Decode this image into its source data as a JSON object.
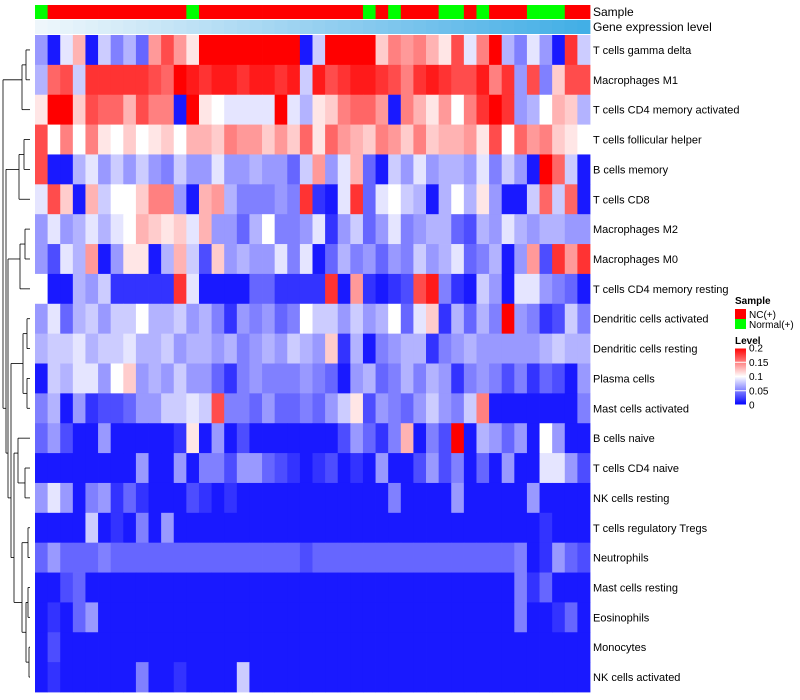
{
  "chart_data": {
    "type": "heatmap",
    "title": "",
    "annotation_tracks": [
      {
        "name": "Sample",
        "colors": [
          "#00ff00",
          "#ff0000",
          "#ff0000",
          "#ff0000",
          "#ff0000",
          "#ff0000",
          "#ff0000",
          "#ff0000",
          "#ff0000",
          "#ff0000",
          "#ff0000",
          "#ff0000",
          "#00ff00",
          "#ff0000",
          "#ff0000",
          "#ff0000",
          "#ff0000",
          "#ff0000",
          "#ff0000",
          "#ff0000",
          "#ff0000",
          "#ff0000",
          "#ff0000",
          "#ff0000",
          "#ff0000",
          "#ff0000",
          "#00ff00",
          "#ff0000",
          "#00ff00",
          "#ff0000",
          "#ff0000",
          "#ff0000",
          "#00ff00",
          "#00ff00",
          "#ff0000",
          "#00ff00",
          "#ff0000",
          "#ff0000",
          "#ff0000",
          "#00ff00",
          "#00ff00",
          "#00ff00",
          "#ff0000",
          "#ff0000"
        ]
      },
      {
        "name": "Gene expression level",
        "colors": [
          "#eef6fb",
          "#eaf5fb",
          "#e6f3fa",
          "#e2f1fa",
          "#def0f9",
          "#daeef9",
          "#d6ecf8",
          "#d2eaf8",
          "#ceE8f7",
          "#cae7f7",
          "#c6e5f6",
          "#c2e3f6",
          "#bee1f5",
          "#bae0f5",
          "#b6def4",
          "#b2dcf4",
          "#aedaf3",
          "#aad9f3",
          "#a6d7f2",
          "#a2d5f2",
          "#9ed3f1",
          "#9ad2f1",
          "#96d0f0",
          "#92cef0",
          "#8ecdef",
          "#8acbef",
          "#86c9ee",
          "#82c8ee",
          "#7ec6ed",
          "#7ac4ed",
          "#76c3ec",
          "#72c1ec",
          "#6ebfeb",
          "#6abeeb",
          "#66bcea",
          "#62bbea",
          "#5eb9e9",
          "#5ab8e9",
          "#56b6e8",
          "#52b5e8",
          "#4eb3e7",
          "#4ab2e7",
          "#46b0e6",
          "#42afe6"
        ]
      }
    ],
    "rows": [
      "T cells gamma delta",
      "Macrophages M1",
      "T cells CD4 memory activated",
      "T cells follicular helper",
      "B cells memory",
      "T cells CD8",
      "Macrophages M2",
      "Macrophages M0",
      "T cells CD4 memory resting",
      "Dendritic cells activated",
      "Dendritic cells resting",
      "Plasma cells",
      "Mast cells activated",
      "B cells naive",
      "T cells CD4 naive",
      "NK cells resting",
      "T cells regulatory  Tregs",
      "Neutrophils",
      "Mast cells resting",
      "Eosinophils",
      "Monocytes",
      "NK cells activated"
    ],
    "values": [
      [
        0.06,
        0.01,
        0.09,
        0.13,
        0.01,
        0.08,
        0.05,
        0.07,
        0.04,
        0.14,
        0.17,
        0.14,
        0.11,
        0.2,
        0.2,
        0.2,
        0.2,
        0.2,
        0.2,
        0.2,
        0.2,
        0.01,
        0.08,
        0.2,
        0.2,
        0.2,
        0.2,
        0.12,
        0.15,
        0.14,
        0.15,
        0.13,
        0.11,
        0.17,
        0.09,
        0.15,
        0.2,
        0.07,
        0.05,
        0.09,
        0.06,
        0.01,
        0.18,
        0.08
      ],
      [
        0.07,
        0.16,
        0.17,
        0.08,
        0.18,
        0.18,
        0.18,
        0.18,
        0.18,
        0.17,
        0.16,
        0.2,
        0.19,
        0.18,
        0.19,
        0.19,
        0.18,
        0.19,
        0.19,
        0.18,
        0.19,
        0.08,
        0.19,
        0.17,
        0.18,
        0.19,
        0.19,
        0.18,
        0.17,
        0.15,
        0.18,
        0.19,
        0.18,
        0.17,
        0.17,
        0.19,
        0.15,
        0.18,
        0.06,
        0.17,
        0.05,
        0.12,
        0.17,
        0.17
      ],
      [
        0.11,
        0.2,
        0.2,
        0.12,
        0.17,
        0.16,
        0.16,
        0.13,
        0.17,
        0.15,
        0.15,
        0.01,
        0.2,
        0.11,
        0.1,
        0.09,
        0.09,
        0.09,
        0.09,
        0.2,
        0.09,
        0.07,
        0.11,
        0.12,
        0.15,
        0.16,
        0.16,
        0.14,
        0.01,
        0.15,
        0.13,
        0.11,
        0.14,
        0.1,
        0.15,
        0.18,
        0.2,
        0.18,
        0.06,
        0.07,
        0.1,
        0.13,
        0.12,
        0.07
      ],
      [
        0.17,
        0.1,
        0.15,
        0.1,
        0.15,
        0.11,
        0.1,
        0.12,
        0.1,
        0.11,
        0.12,
        0.1,
        0.13,
        0.13,
        0.12,
        0.15,
        0.14,
        0.14,
        0.12,
        0.14,
        0.12,
        0.16,
        0.11,
        0.16,
        0.14,
        0.13,
        0.12,
        0.15,
        0.14,
        0.12,
        0.15,
        0.12,
        0.13,
        0.13,
        0.14,
        0.11,
        0.17,
        0.1,
        0.16,
        0.14,
        0.15,
        0.12,
        0.11,
        0.1
      ],
      [
        0.17,
        0.01,
        0.01,
        0.07,
        0.09,
        0.06,
        0.08,
        0.06,
        0.08,
        0.06,
        0.05,
        0.08,
        0.06,
        0.06,
        0.09,
        0.06,
        0.06,
        0.07,
        0.06,
        0.06,
        0.04,
        0.08,
        0.14,
        0.06,
        0.09,
        0.13,
        0.04,
        0.01,
        0.08,
        0.06,
        0.09,
        0.06,
        0.07,
        0.07,
        0.06,
        0.09,
        0.05,
        0.08,
        0.06,
        0.01,
        0.2,
        0.16,
        0.08,
        0.01
      ],
      [
        0.09,
        0.17,
        0.12,
        0.01,
        0.13,
        0.08,
        0.1,
        0.1,
        0.12,
        0.15,
        0.15,
        0.06,
        0.01,
        0.13,
        0.14,
        0.07,
        0.05,
        0.05,
        0.05,
        0.06,
        0.05,
        0.18,
        0.02,
        0.01,
        0.09,
        0.18,
        0.04,
        0.09,
        0.1,
        0.08,
        0.07,
        0.01,
        0.07,
        0.1,
        0.07,
        0.11,
        0.06,
        0.01,
        0.01,
        0.08,
        0.16,
        0.08,
        0.16,
        0.01
      ],
      [
        0.06,
        0.09,
        0.06,
        0.07,
        0.09,
        0.07,
        0.09,
        0.1,
        0.13,
        0.12,
        0.11,
        0.12,
        0.09,
        0.13,
        0.06,
        0.06,
        0.04,
        0.07,
        0.1,
        0.05,
        0.05,
        0.06,
        0.09,
        0.02,
        0.06,
        0.08,
        0.04,
        0.06,
        0.09,
        0.05,
        0.06,
        0.07,
        0.07,
        0.04,
        0.03,
        0.07,
        0.06,
        0.09,
        0.07,
        0.06,
        0.07,
        0.07,
        0.06,
        0.06
      ],
      [
        0.06,
        0.03,
        0.09,
        0.07,
        0.14,
        0.01,
        0.06,
        0.11,
        0.11,
        0.01,
        0.07,
        0.13,
        0.08,
        0.03,
        0.12,
        0.06,
        0.07,
        0.06,
        0.06,
        0.09,
        0.05,
        0.09,
        0.01,
        0.04,
        0.07,
        0.05,
        0.06,
        0.04,
        0.06,
        0.05,
        0.08,
        0.06,
        0.07,
        0.09,
        0.04,
        0.05,
        0.07,
        0.01,
        0.06,
        0.14,
        0.03,
        0.18,
        0.14,
        0.18
      ],
      [
        0.1,
        0.01,
        0.01,
        0.07,
        0.06,
        0.08,
        0.02,
        0.02,
        0.02,
        0.02,
        0.02,
        0.18,
        0.09,
        0.01,
        0.01,
        0.01,
        0.01,
        0.04,
        0.04,
        0.02,
        0.02,
        0.02,
        0.02,
        0.18,
        0.01,
        0.14,
        0.02,
        0.01,
        0.02,
        0.03,
        0.17,
        0.19,
        0.05,
        0.02,
        0.01,
        0.08,
        0.06,
        0.01,
        0.09,
        0.09,
        0.06,
        0.05,
        0.04,
        0.01
      ],
      [
        0.06,
        0.09,
        0.04,
        0.07,
        0.08,
        0.06,
        0.08,
        0.08,
        0.1,
        0.07,
        0.07,
        0.08,
        0.06,
        0.07,
        0.05,
        0.02,
        0.06,
        0.05,
        0.06,
        0.04,
        0.05,
        0.1,
        0.08,
        0.08,
        0.06,
        0.08,
        0.06,
        0.07,
        0.1,
        0.04,
        0.09,
        0.12,
        0.02,
        0.07,
        0.04,
        0.07,
        0.05,
        0.2,
        0.06,
        0.05,
        0.02,
        0.03,
        0.08,
        0.05
      ],
      [
        0.07,
        0.08,
        0.08,
        0.09,
        0.07,
        0.08,
        0.08,
        0.09,
        0.07,
        0.07,
        0.08,
        0.06,
        0.07,
        0.07,
        0.06,
        0.07,
        0.05,
        0.06,
        0.07,
        0.06,
        0.08,
        0.07,
        0.06,
        0.12,
        0.02,
        0.07,
        0.01,
        0.05,
        0.06,
        0.07,
        0.07,
        0.02,
        0.05,
        0.06,
        0.07,
        0.06,
        0.06,
        0.06,
        0.06,
        0.06,
        0.07,
        0.08,
        0.07,
        0.07
      ],
      [
        0.01,
        0.08,
        0.07,
        0.09,
        0.09,
        0.06,
        0.1,
        0.12,
        0.06,
        0.07,
        0.06,
        0.08,
        0.06,
        0.06,
        0.04,
        0.02,
        0.05,
        0.06,
        0.05,
        0.05,
        0.05,
        0.06,
        0.05,
        0.04,
        0.01,
        0.06,
        0.07,
        0.04,
        0.05,
        0.07,
        0.05,
        0.07,
        0.06,
        0.02,
        0.05,
        0.06,
        0.05,
        0.03,
        0.05,
        0.02,
        0.04,
        0.03,
        0.01,
        0.06
      ],
      [
        0.05,
        0.07,
        0.01,
        0.06,
        0.02,
        0.03,
        0.03,
        0.04,
        0.06,
        0.06,
        0.08,
        0.08,
        0.09,
        0.08,
        0.17,
        0.05,
        0.05,
        0.04,
        0.06,
        0.04,
        0.04,
        0.05,
        0.04,
        0.06,
        0.08,
        0.11,
        0.03,
        0.06,
        0.05,
        0.04,
        0.06,
        0.08,
        0.06,
        0.05,
        0.08,
        0.15,
        0.01,
        0.01,
        0.01,
        0.01,
        0.01,
        0.01,
        0.01,
        0.05
      ],
      [
        0.04,
        0.06,
        0.03,
        0.01,
        0.01,
        0.06,
        0.01,
        0.01,
        0.01,
        0.01,
        0.01,
        0.02,
        0.11,
        0.01,
        0.06,
        0.01,
        0.03,
        0.01,
        0.01,
        0.01,
        0.01,
        0.01,
        0.01,
        0.01,
        0.03,
        0.06,
        0.04,
        0.02,
        0.05,
        0.13,
        0.01,
        0.05,
        0.03,
        0.2,
        0.01,
        0.07,
        0.06,
        0.04,
        0.06,
        0.01,
        0.1,
        0.06,
        0.01,
        0.01
      ],
      [
        0.01,
        0.01,
        0.01,
        0.01,
        0.01,
        0.01,
        0.01,
        0.01,
        0.06,
        0.01,
        0.01,
        0.06,
        0.01,
        0.05,
        0.05,
        0.03,
        0.06,
        0.06,
        0.04,
        0.03,
        0.02,
        0.01,
        0.02,
        0.03,
        0.01,
        0.02,
        0.01,
        0.06,
        0.01,
        0.01,
        0.03,
        0.06,
        0.03,
        0.05,
        0.01,
        0.04,
        0.01,
        0.06,
        0.01,
        0.01,
        0.09,
        0.09,
        0.06,
        0.03
      ],
      [
        0.06,
        0.09,
        0.06,
        0.01,
        0.05,
        0.06,
        0.02,
        0.04,
        0.02,
        0.01,
        0.01,
        0.01,
        0.03,
        0.02,
        0.01,
        0.02,
        0.01,
        0.01,
        0.01,
        0.01,
        0.01,
        0.01,
        0.01,
        0.01,
        0.01,
        0.01,
        0.01,
        0.01,
        0.05,
        0.01,
        0.01,
        0.01,
        0.01,
        0.06,
        0.01,
        0.01,
        0.01,
        0.01,
        0.01,
        0.06,
        0.01,
        0.01,
        0.01,
        0.01
      ],
      [
        0.01,
        0.01,
        0.01,
        0.01,
        0.08,
        0.01,
        0.02,
        0.01,
        0.05,
        0.01,
        0.06,
        0.01,
        0.01,
        0.01,
        0.01,
        0.01,
        0.01,
        0.01,
        0.01,
        0.01,
        0.01,
        0.01,
        0.01,
        0.01,
        0.01,
        0.01,
        0.01,
        0.01,
        0.01,
        0.01,
        0.01,
        0.01,
        0.01,
        0.01,
        0.01,
        0.01,
        0.01,
        0.01,
        0.01,
        0.01,
        0.02,
        0.01,
        0.01,
        0.01
      ],
      [
        0.04,
        0.06,
        0.04,
        0.04,
        0.04,
        0.05,
        0.04,
        0.04,
        0.04,
        0.04,
        0.04,
        0.04,
        0.04,
        0.04,
        0.04,
        0.04,
        0.04,
        0.04,
        0.04,
        0.04,
        0.04,
        0.03,
        0.04,
        0.04,
        0.04,
        0.04,
        0.04,
        0.04,
        0.04,
        0.04,
        0.04,
        0.04,
        0.04,
        0.04,
        0.04,
        0.04,
        0.04,
        0.04,
        0.05,
        0.01,
        0.02,
        0.06,
        0.04,
        0.03
      ],
      [
        0.01,
        0.01,
        0.03,
        0.04,
        0.01,
        0.01,
        0.01,
        0.01,
        0.01,
        0.01,
        0.01,
        0.01,
        0.01,
        0.01,
        0.01,
        0.01,
        0.01,
        0.01,
        0.01,
        0.01,
        0.01,
        0.01,
        0.01,
        0.01,
        0.01,
        0.01,
        0.01,
        0.01,
        0.01,
        0.01,
        0.01,
        0.01,
        0.01,
        0.01,
        0.01,
        0.01,
        0.01,
        0.01,
        0.05,
        0.02,
        0.04,
        0.01,
        0.01,
        0.01
      ],
      [
        0.01,
        0.02,
        0.01,
        0.04,
        0.06,
        0.01,
        0.01,
        0.01,
        0.01,
        0.01,
        0.01,
        0.01,
        0.01,
        0.01,
        0.01,
        0.01,
        0.01,
        0.01,
        0.01,
        0.01,
        0.01,
        0.01,
        0.01,
        0.01,
        0.01,
        0.01,
        0.01,
        0.01,
        0.01,
        0.01,
        0.01,
        0.01,
        0.01,
        0.01,
        0.01,
        0.01,
        0.01,
        0.01,
        0.05,
        0.01,
        0.01,
        0.02,
        0.04,
        0.01
      ],
      [
        0.01,
        0.03,
        0.01,
        0.01,
        0.01,
        0.01,
        0.01,
        0.01,
        0.01,
        0.01,
        0.01,
        0.01,
        0.01,
        0.01,
        0.01,
        0.01,
        0.01,
        0.01,
        0.01,
        0.01,
        0.01,
        0.01,
        0.01,
        0.01,
        0.01,
        0.01,
        0.01,
        0.01,
        0.01,
        0.01,
        0.01,
        0.01,
        0.01,
        0.01,
        0.01,
        0.01,
        0.01,
        0.01,
        0.01,
        0.01,
        0.01,
        0.01,
        0.01,
        0.01
      ],
      [
        0.01,
        0.02,
        0.01,
        0.01,
        0.01,
        0.01,
        0.01,
        0.01,
        0.05,
        0.01,
        0.01,
        0.02,
        0.01,
        0.01,
        0.01,
        0.01,
        0.08,
        0.01,
        0.01,
        0.01,
        0.01,
        0.01,
        0.01,
        0.01,
        0.01,
        0.01,
        0.01,
        0.01,
        0.01,
        0.01,
        0.01,
        0.01,
        0.01,
        0.01,
        0.01,
        0.01,
        0.01,
        0.01,
        0.01,
        0.01,
        0.01,
        0.01,
        0.01,
        0.01
      ]
    ],
    "color_scale": {
      "min": 0,
      "mid": 0.1,
      "max": 0.2,
      "low_color": "#0000ff",
      "mid_color": "#ffffff",
      "high_color": "#ff0000"
    },
    "legend": {
      "groups": [
        {
          "title": "Sample",
          "entries": [
            {
              "label": "NC(+)",
              "color": "#ff0000"
            },
            {
              "label": "Normal(+)",
              "color": "#00ff00"
            }
          ]
        },
        {
          "title": "Level",
          "ticks": [
            0.2,
            0.15,
            0.1,
            0.05,
            0
          ],
          "tick_labels": [
            "0.2",
            "0.15",
            "0.1",
            "0.05",
            "0"
          ]
        }
      ],
      "placement": "right"
    },
    "dendrogram": "rows",
    "grid": false
  }
}
